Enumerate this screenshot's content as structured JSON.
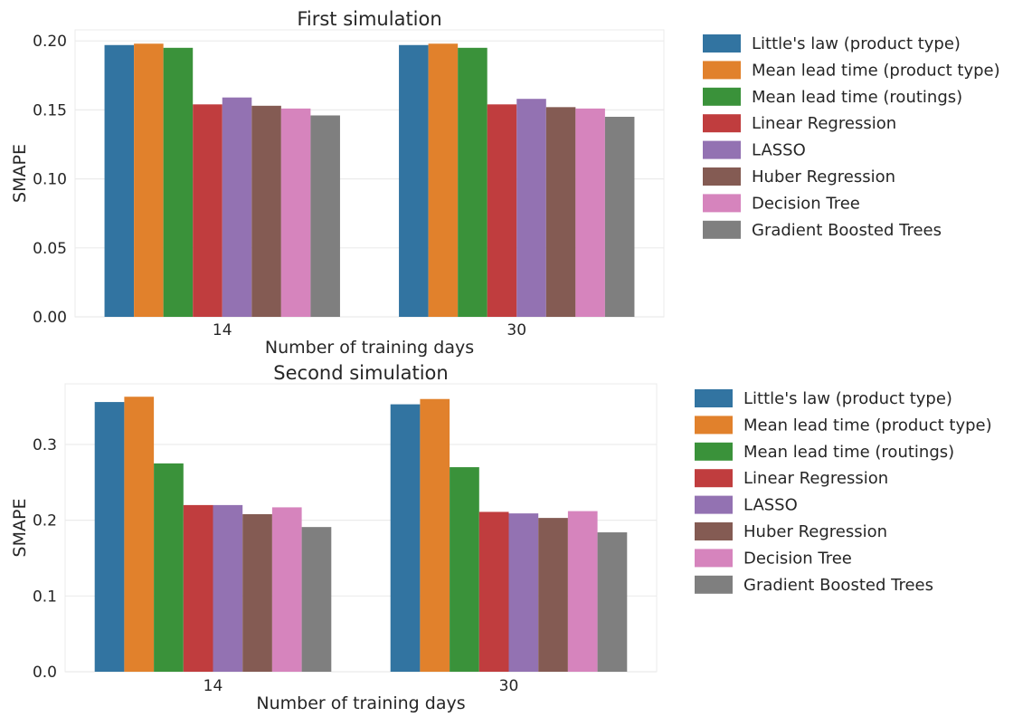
{
  "chart_data": [
    {
      "type": "bar",
      "title": "First simulation",
      "xlabel": "Number of training days",
      "ylabel": "SMAPE",
      "ylim": [
        0,
        0.208
      ],
      "yticks": [
        "0.00",
        "0.05",
        "0.10",
        "0.15",
        "0.20"
      ],
      "ytick_values": [
        0,
        0.05,
        0.1,
        0.15,
        0.2
      ],
      "categories": [
        "14",
        "30"
      ],
      "grid": true,
      "legend_position": "outside-right",
      "series": [
        {
          "name": "Little's law (product type)",
          "color": "#3274a1",
          "values": [
            0.197,
            0.197
          ]
        },
        {
          "name": "Mean lead time (product type)",
          "color": "#e1812c",
          "values": [
            0.198,
            0.198
          ]
        },
        {
          "name": "Mean lead time (routings)",
          "color": "#3a923a",
          "values": [
            0.195,
            0.195
          ]
        },
        {
          "name": "Linear Regression",
          "color": "#c03d3e",
          "values": [
            0.154,
            0.154
          ]
        },
        {
          "name": "LASSO",
          "color": "#9372b2",
          "values": [
            0.159,
            0.158
          ]
        },
        {
          "name": "Huber Regression",
          "color": "#845b53",
          "values": [
            0.153,
            0.152
          ]
        },
        {
          "name": "Decision Tree",
          "color": "#d684bd",
          "values": [
            0.151,
            0.151
          ]
        },
        {
          "name": "Gradient Boosted Trees",
          "color": "#7f7f7f",
          "values": [
            0.146,
            0.145
          ]
        }
      ]
    },
    {
      "type": "bar",
      "title": "Second simulation",
      "xlabel": "Number of training days",
      "ylabel": "SMAPE",
      "ylim": [
        0,
        0.38
      ],
      "yticks": [
        "0.0",
        "0.1",
        "0.2",
        "0.3"
      ],
      "ytick_values": [
        0,
        0.1,
        0.2,
        0.3
      ],
      "categories": [
        "14",
        "30"
      ],
      "grid": true,
      "legend_position": "outside-right",
      "series": [
        {
          "name": "Little's law (product type)",
          "color": "#3274a1",
          "values": [
            0.356,
            0.353
          ]
        },
        {
          "name": "Mean lead time (product type)",
          "color": "#e1812c",
          "values": [
            0.363,
            0.36
          ]
        },
        {
          "name": "Mean lead time (routings)",
          "color": "#3a923a",
          "values": [
            0.275,
            0.27
          ]
        },
        {
          "name": "Linear Regression",
          "color": "#c03d3e",
          "values": [
            0.22,
            0.211
          ]
        },
        {
          "name": "LASSO",
          "color": "#9372b2",
          "values": [
            0.22,
            0.209
          ]
        },
        {
          "name": "Huber Regression",
          "color": "#845b53",
          "values": [
            0.208,
            0.203
          ]
        },
        {
          "name": "Decision Tree",
          "color": "#d684bd",
          "values": [
            0.217,
            0.212
          ]
        },
        {
          "name": "Gradient Boosted Trees",
          "color": "#7f7f7f",
          "values": [
            0.191,
            0.184
          ]
        }
      ]
    }
  ]
}
